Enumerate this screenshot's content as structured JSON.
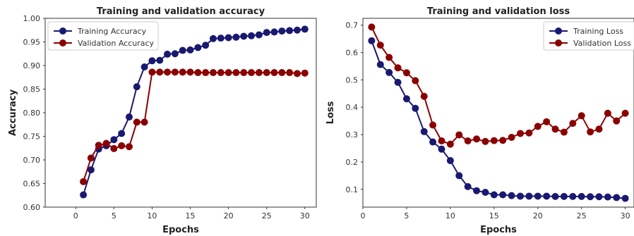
{
  "chart_data": [
    {
      "type": "line",
      "title": "Training and validation accuracy",
      "xlabel": "Epochs",
      "ylabel": "Accuracy",
      "xlim": [
        -4,
        31.5
      ],
      "ylim": [
        0.6,
        1.0
      ],
      "xticks": [
        0,
        5,
        10,
        15,
        20,
        25,
        30
      ],
      "yticks": [
        0.6,
        0.65,
        0.7,
        0.75,
        0.8,
        0.85,
        0.9,
        0.95,
        1.0
      ],
      "ytick_labels": [
        "0.60",
        "0.65",
        "0.70",
        "0.75",
        "0.80",
        "0.85",
        "0.90",
        "0.95",
        "1.00"
      ],
      "grid": false,
      "legend": "top-left",
      "x": [
        1,
        2,
        3,
        4,
        5,
        6,
        7,
        8,
        9,
        10,
        11,
        12,
        13,
        14,
        15,
        16,
        17,
        18,
        19,
        20,
        21,
        22,
        23,
        24,
        25,
        26,
        27,
        28,
        29,
        30
      ],
      "series": [
        {
          "name": "Training Accuracy",
          "color": "#191970",
          "values": [
            0.626,
            0.679,
            0.723,
            0.73,
            0.743,
            0.756,
            0.791,
            0.855,
            0.897,
            0.91,
            0.911,
            0.924,
            0.925,
            0.932,
            0.933,
            0.938,
            0.943,
            0.957,
            0.958,
            0.959,
            0.96,
            0.962,
            0.963,
            0.965,
            0.97,
            0.971,
            0.973,
            0.974,
            0.975,
            0.977
          ]
        },
        {
          "name": "Validation Accuracy",
          "color": "#8b0000",
          "values": [
            0.654,
            0.704,
            0.731,
            0.735,
            0.724,
            0.73,
            0.728,
            0.78,
            0.78,
            0.886,
            0.886,
            0.886,
            0.886,
            0.886,
            0.886,
            0.885,
            0.885,
            0.885,
            0.885,
            0.885,
            0.885,
            0.885,
            0.885,
            0.885,
            0.885,
            0.885,
            0.885,
            0.885,
            0.883,
            0.884
          ]
        }
      ]
    },
    {
      "type": "line",
      "title": "Training and validation loss",
      "xlabel": "Epochs",
      "ylabel": "Loss",
      "xlim": [
        0,
        31
      ],
      "ylim": [
        0.035,
        0.725
      ],
      "xticks": [
        0,
        5,
        10,
        15,
        20,
        25,
        30
      ],
      "yticks": [
        0.1,
        0.2,
        0.3,
        0.4,
        0.5,
        0.6,
        0.7
      ],
      "ytick_labels": [
        "0.1",
        "0.2",
        "0.3",
        "0.4",
        "0.5",
        "0.6",
        "0.7"
      ],
      "grid": false,
      "legend": "top-right",
      "x": [
        1,
        2,
        3,
        4,
        5,
        6,
        7,
        8,
        9,
        10,
        11,
        12,
        13,
        14,
        15,
        16,
        17,
        18,
        19,
        20,
        21,
        22,
        23,
        24,
        25,
        26,
        27,
        28,
        29,
        30
      ],
      "series": [
        {
          "name": "Training Loss",
          "color": "#191970",
          "values": [
            0.643,
            0.556,
            0.527,
            0.491,
            0.431,
            0.396,
            0.311,
            0.273,
            0.247,
            0.205,
            0.15,
            0.11,
            0.095,
            0.089,
            0.08,
            0.08,
            0.077,
            0.075,
            0.075,
            0.075,
            0.075,
            0.074,
            0.074,
            0.074,
            0.074,
            0.073,
            0.073,
            0.072,
            0.07,
            0.067
          ]
        },
        {
          "name": "Validation Loss",
          "color": "#8b0000",
          "values": [
            0.693,
            0.627,
            0.582,
            0.544,
            0.526,
            0.497,
            0.44,
            0.335,
            0.277,
            0.265,
            0.299,
            0.277,
            0.284,
            0.275,
            0.278,
            0.279,
            0.29,
            0.304,
            0.306,
            0.33,
            0.347,
            0.32,
            0.309,
            0.341,
            0.369,
            0.31,
            0.32,
            0.378,
            0.35,
            0.378
          ]
        }
      ]
    }
  ]
}
